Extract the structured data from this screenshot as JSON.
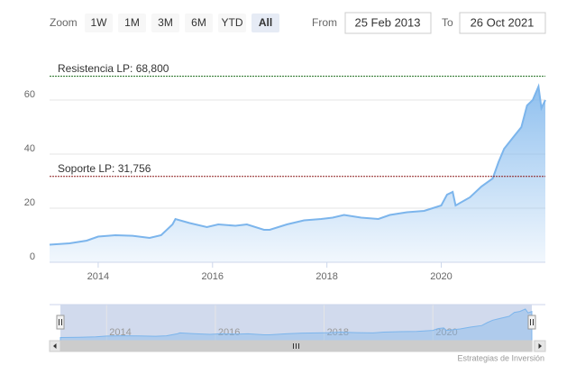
{
  "zoom": {
    "label": "Zoom",
    "buttons": [
      "1W",
      "1M",
      "3M",
      "6M",
      "YTD",
      "All"
    ],
    "selected": 5
  },
  "range": {
    "from_label": "From",
    "from": "25 Feb 2013",
    "to_label": "To",
    "to": "26 Oct 2021"
  },
  "credit": "Estrategias de Inversión",
  "chart_data": {
    "type": "area",
    "color": "#7cb5ec",
    "x": [
      2013.15,
      2013.5,
      2013.8,
      2014.0,
      2014.3,
      2014.6,
      2014.9,
      2015.1,
      2015.3,
      2015.35,
      2015.6,
      2015.9,
      2016.1,
      2016.4,
      2016.6,
      2016.9,
      2017.0,
      2017.3,
      2017.6,
      2017.9,
      2018.1,
      2018.3,
      2018.6,
      2018.9,
      2019.1,
      2019.4,
      2019.7,
      2020.0,
      2020.1,
      2020.2,
      2020.25,
      2020.5,
      2020.7,
      2020.9,
      2021.0,
      2021.1,
      2021.25,
      2021.4,
      2021.5,
      2021.6,
      2021.7,
      2021.75,
      2021.82
    ],
    "values": [
      6.5,
      7,
      8,
      9.5,
      10,
      9.8,
      9,
      10,
      14,
      16,
      14.5,
      13,
      14,
      13.5,
      14,
      12,
      12,
      14,
      15.5,
      16,
      16.5,
      17.5,
      16.5,
      16,
      17.5,
      18.5,
      19,
      21,
      25,
      26,
      21,
      24,
      28,
      31,
      37,
      42,
      46,
      50,
      58,
      60,
      65,
      57,
      60
    ],
    "xlim": [
      2013.15,
      2021.82
    ],
    "ylim": [
      0,
      74
    ],
    "xticks": [
      2014,
      2016,
      2018,
      2020
    ],
    "yticks": [
      0,
      20,
      40,
      60
    ],
    "grid": true,
    "annotations": [
      {
        "label": "Resistencia LP: 68,800",
        "value": 68.8,
        "color": "#1a6b1a"
      },
      {
        "label": "Soporte LP: 31,756",
        "value": 31.756,
        "color": "#8b1a1a"
      }
    ]
  }
}
